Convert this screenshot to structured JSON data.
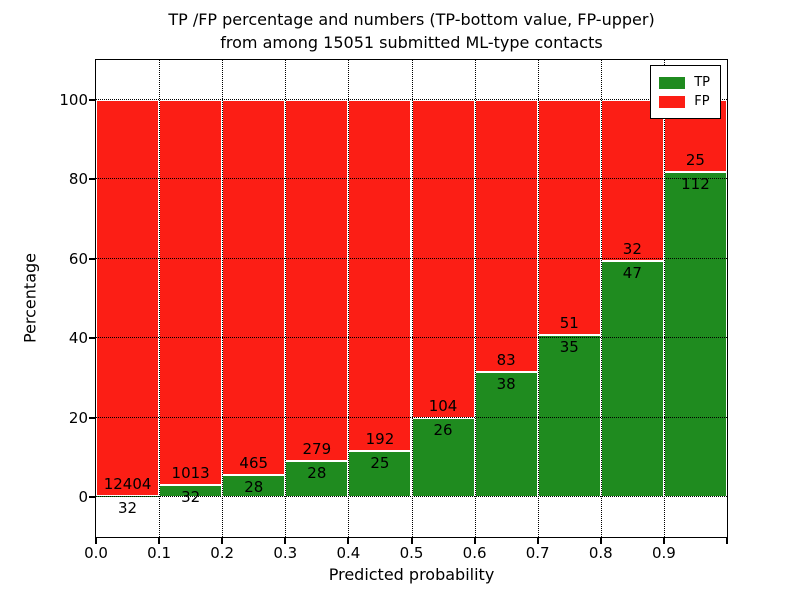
{
  "title": {
    "line1": "TP /FP percentage and numbers (TP-bottom value, FP-upper)",
    "line2": "from among 15051 submitted ML-type contacts"
  },
  "axes": {
    "ylabel": "Percentage",
    "xlabel": "Predicted probability",
    "ytick_labels": [
      "0",
      "20",
      "40",
      "60",
      "80",
      "100"
    ],
    "ytick_values": [
      0,
      20,
      40,
      60,
      80,
      100
    ],
    "xtick_labels": [
      "0.0",
      "0.1",
      "0.2",
      "0.3",
      "0.4",
      "0.5",
      "0.6",
      "0.7",
      "0.8",
      "0.9"
    ],
    "ylim": [
      -10,
      110
    ],
    "xlim": [
      0.0,
      1.0
    ]
  },
  "legend": {
    "items": [
      {
        "label": "TP",
        "color": "#1f8b1f"
      },
      {
        "label": "FP",
        "color": "#fc1e15"
      }
    ],
    "position": "upper right"
  },
  "colors": {
    "tp_green": "#1f8b1f",
    "fp_red": "#fc1e15",
    "bar_edge": "#ffffff",
    "grid": "#000000",
    "background": "#ffffff"
  },
  "chart_data": {
    "type": "bar",
    "stacked": true,
    "normalized_to": 100,
    "title": "TP /FP percentage and numbers (TP-bottom value, FP-upper) from among 15051 submitted ML-type contacts",
    "xlabel": "Predicted probability",
    "ylabel": "Percentage",
    "total_contacts": 15051,
    "grid": "dotted",
    "legend_position": "upper right",
    "x_bin_edges": [
      0.0,
      0.1,
      0.2,
      0.3,
      0.4,
      0.5,
      0.6,
      0.7,
      0.8,
      0.9,
      1.0
    ],
    "categories": [
      "0.0-0.1",
      "0.1-0.2",
      "0.2-0.3",
      "0.3-0.4",
      "0.4-0.5",
      "0.5-0.6",
      "0.6-0.7",
      "0.7-0.8",
      "0.8-0.9",
      "0.9-1.0"
    ],
    "series": [
      {
        "name": "TP",
        "color": "#1f8b1f",
        "counts": [
          32,
          32,
          28,
          28,
          25,
          26,
          38,
          35,
          47,
          112
        ],
        "percent": [
          0.26,
          3.06,
          5.68,
          9.12,
          11.52,
          20.0,
          31.4,
          40.7,
          59.49,
          81.75
        ]
      },
      {
        "name": "FP",
        "color": "#fc1e15",
        "counts": [
          12404,
          1013,
          465,
          279,
          192,
          104,
          83,
          51,
          32,
          25
        ],
        "percent": [
          99.74,
          96.94,
          94.32,
          90.88,
          88.48,
          80.0,
          68.6,
          59.3,
          40.51,
          18.25
        ]
      }
    ],
    "ylim": [
      -10,
      110
    ]
  }
}
